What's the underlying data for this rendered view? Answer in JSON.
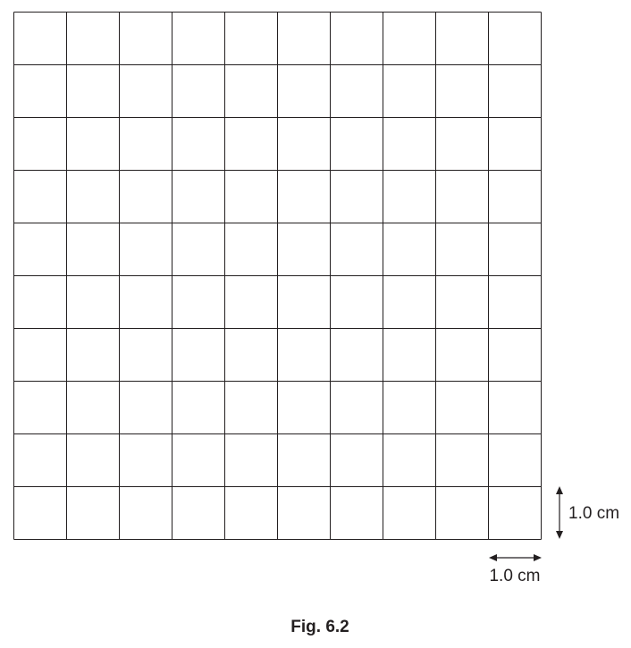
{
  "grid": {
    "rows": 10,
    "columns": 10
  },
  "scale": {
    "vertical_label": "1.0 cm",
    "horizontal_label": "1.0 cm"
  },
  "caption": "Fig. 6.2",
  "colors": {
    "line": "#231f20",
    "background": "#ffffff"
  }
}
